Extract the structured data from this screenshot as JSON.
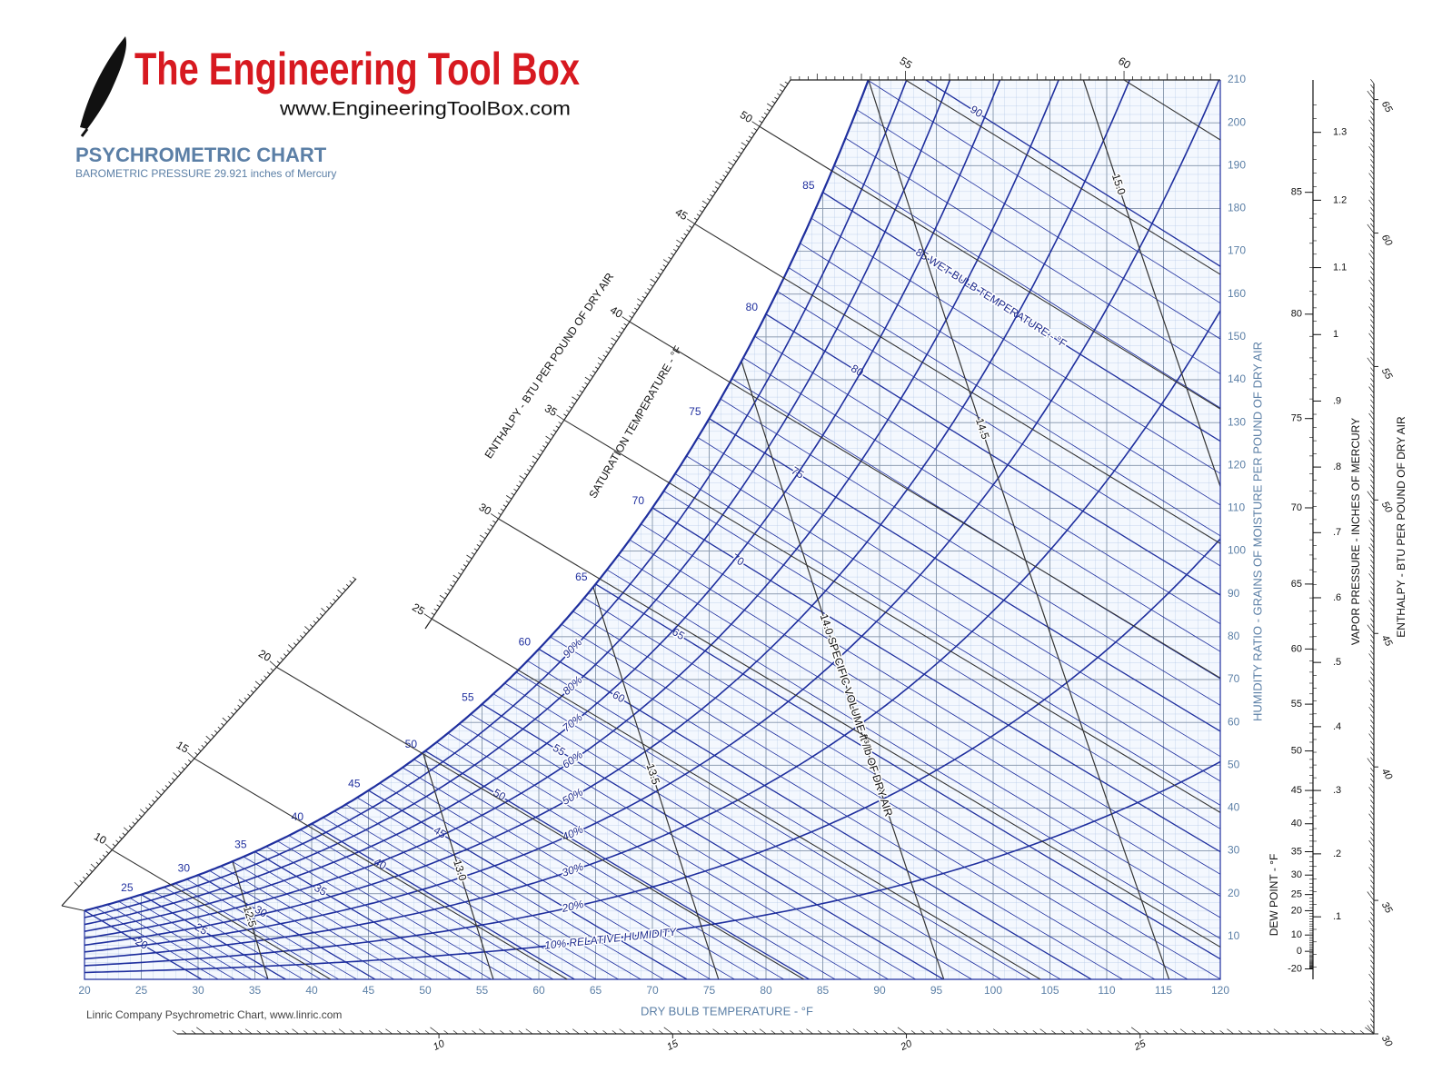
{
  "logo": {
    "title": "The Engineering Tool Box",
    "url": "www.EngineeringToolBox.com"
  },
  "chart_data": {
    "type": "psychrometric",
    "title": "PSYCHROMETRIC CHART",
    "subtitle": "BAROMETRIC PRESSURE 29.921 inches of Mercury",
    "barometric_pressure": 29.921,
    "xlabel": "DRY BULB TEMPERATURE - °F",
    "ylabel": "HUMIDITY RATIO - GRAINS OF MOISTURE PER POUND OF DRY AIR",
    "xlim": [
      20,
      120
    ],
    "xticks": [
      20,
      25,
      30,
      35,
      40,
      45,
      50,
      55,
      60,
      65,
      70,
      75,
      80,
      85,
      90,
      95,
      100,
      105,
      110,
      115,
      120
    ],
    "ylim": [
      0,
      210
    ],
    "yticks": [
      10,
      20,
      30,
      40,
      50,
      60,
      70,
      80,
      90,
      100,
      110,
      120,
      130,
      140,
      150,
      160,
      170,
      180,
      190,
      200,
      210
    ],
    "grid": true,
    "saturation": {
      "label": "SATURATION TEMPERATURE - °F",
      "values": [
        25,
        30,
        35,
        40,
        45,
        50,
        55,
        60,
        65,
        70,
        75,
        80,
        85
      ],
      "color": "#1f2f9e"
    },
    "wet_bulb": {
      "color": "#1f2f9e",
      "values": [
        20,
        21,
        22,
        23,
        24,
        25,
        26,
        27,
        28,
        29,
        30,
        31,
        32,
        33,
        34,
        35,
        36,
        37,
        38,
        39,
        40,
        41,
        42,
        43,
        44,
        45,
        46,
        47,
        48,
        49,
        50,
        51,
        52,
        53,
        54,
        55,
        56,
        57,
        58,
        59,
        60,
        61,
        62,
        63,
        64,
        65,
        66,
        67,
        68,
        69,
        70,
        71,
        72,
        73,
        74,
        75,
        76,
        77,
        78,
        79,
        80,
        81,
        82,
        83,
        84,
        85,
        86,
        87,
        88,
        89,
        90
      ],
      "value_labels": [
        "20",
        null,
        null,
        null,
        null,
        "25",
        null,
        null,
        null,
        null,
        "30",
        null,
        null,
        null,
        null,
        "35",
        null,
        null,
        null,
        null,
        "40",
        null,
        null,
        null,
        null,
        "45",
        null,
        null,
        null,
        null,
        "50",
        null,
        null,
        null,
        null,
        "55",
        null,
        null,
        null,
        null,
        "60",
        null,
        null,
        null,
        null,
        "65",
        null,
        null,
        null,
        null,
        "70",
        null,
        null,
        null,
        null,
        "75",
        null,
        null,
        null,
        null,
        "80",
        null,
        null,
        null,
        null,
        "85 WET BULB TEMPERATURE - °F",
        null,
        null,
        null,
        null,
        "90"
      ]
    },
    "relative_humidity": {
      "color": "#1f2f9e",
      "values": [
        10,
        20,
        30,
        40,
        50,
        60,
        70,
        80,
        90
      ],
      "value_labels": [
        "10% RELATIVE HUMIDITY",
        "20%",
        "30%",
        "40%",
        "50%",
        "60%",
        "70%",
        "80%",
        "90%"
      ]
    },
    "specific_volume": {
      "color": "#333333",
      "values": [
        12.5,
        13.0,
        13.5,
        14.0,
        14.5,
        15.0
      ],
      "value_labels": [
        "12.5",
        "13.0",
        "13.5",
        "14.0 SPECIFIC VOLUME ft³/lb OF DRY AIR",
        "14.5",
        "15.0"
      ]
    },
    "enthalpy": {
      "label": "ENTHALPY - BTU PER POUND OF DRY AIR",
      "color": "#333333",
      "ticks": [
        10,
        15,
        20,
        25,
        30,
        35,
        40,
        45,
        50,
        55,
        60
      ]
    },
    "dew_point": {
      "label": "DEW POINT - °F",
      "ticks": [
        -20,
        0,
        10,
        20,
        25,
        30,
        35,
        40,
        45,
        50,
        55,
        60,
        65,
        70,
        75,
        80,
        85
      ]
    },
    "vapor_pressure": {
      "label": "VAPOR PRESSURE - INCHES OF MERCURY",
      "ticks": [
        {
          "value": 0.1,
          "label": ".1"
        },
        {
          "value": 0.2,
          "label": ".2"
        },
        {
          "value": 0.3,
          "label": ".3"
        },
        {
          "value": 0.4,
          "label": ".4"
        },
        {
          "value": 0.5,
          "label": ".5"
        },
        {
          "value": 0.6,
          "label": ".6"
        },
        {
          "value": 0.7,
          "label": ".7"
        },
        {
          "value": 0.8,
          "label": ".8"
        },
        {
          "value": 0.9,
          "label": ".9"
        },
        1,
        1.1,
        1.2,
        1.3
      ]
    },
    "enthalpy_right": {
      "label": "ENTHALPY - BTU PER POUND OF DRY AIR",
      "lim": [
        30,
        65.6
      ],
      "ticks": [
        30,
        35,
        40,
        45,
        50,
        55,
        60,
        65
      ]
    },
    "enthalpy_bottom": {
      "lim": [
        4.4,
        30
      ],
      "ticks": [
        10,
        15,
        20,
        25
      ]
    }
  },
  "credit": "Linric Company Psychrometric Chart, www.linric.com"
}
